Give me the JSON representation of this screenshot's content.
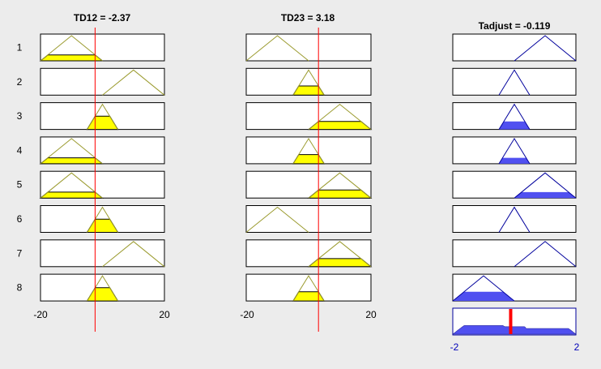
{
  "inputs": [
    {
      "title": "TD12 = -2.37",
      "range": [
        -20,
        20
      ],
      "value": -2.37,
      "tick_min": "-20",
      "tick_max": "20"
    },
    {
      "title": "TD23 = 3.18",
      "range": [
        -20,
        20
      ],
      "value": 3.18,
      "tick_min": "-20",
      "tick_max": "20"
    }
  ],
  "output": {
    "title": "Tadjust = -0.119",
    "range": [
      -2,
      2
    ],
    "value": -0.119,
    "tick_min": "-2",
    "tick_max": "2"
  },
  "rule_numbers": [
    "1",
    "2",
    "3",
    "4",
    "5",
    "6",
    "7",
    "8"
  ],
  "membership_functions": {
    "input": {
      "N": [
        -20,
        -10,
        0
      ],
      "Z": [
        -5,
        0,
        5
      ],
      "P": [
        0,
        10,
        20
      ]
    },
    "output": {
      "N": [
        -2,
        -1,
        0
      ],
      "Z": [
        -0.5,
        0,
        0.5
      ],
      "P": [
        0,
        1,
        2
      ]
    }
  },
  "rules": [
    {
      "in1": "N",
      "in2": "N",
      "out": "P"
    },
    {
      "in1": "P",
      "in2": "Z",
      "out": "Z"
    },
    {
      "in1": "Z",
      "in2": "P",
      "out": "Z"
    },
    {
      "in1": "N",
      "in2": "Z",
      "out": "Z"
    },
    {
      "in1": "N",
      "in2": "P",
      "out": "P"
    },
    {
      "in1": "Z",
      "in2": "N",
      "out": "Z"
    },
    {
      "in1": "P",
      "in2": "P",
      "out": "P"
    },
    {
      "in1": "Z",
      "in2": "Z",
      "out": "N"
    }
  ],
  "colors": {
    "input_fill": "#ffff00",
    "input_mf_line": "#9b9b2f",
    "output_fill": "#5050f0",
    "output_mf_line": "#00009c",
    "value_line": "#ff0000",
    "panel_bg": "#ffffff",
    "panel_border": "#000000"
  }
}
